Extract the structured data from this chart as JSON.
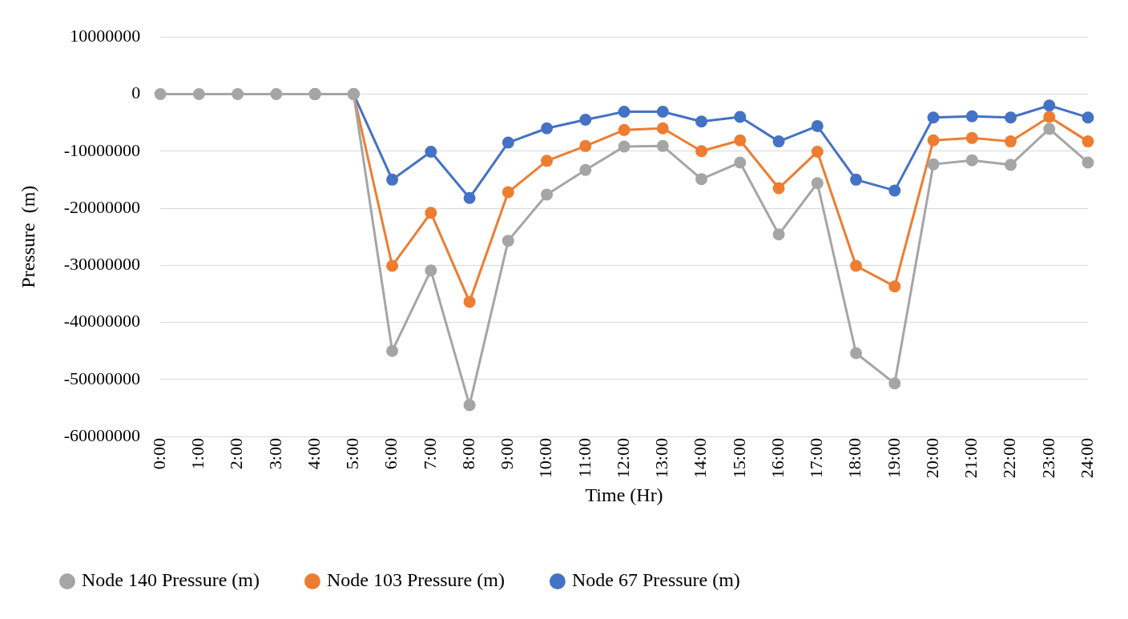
{
  "chart_data": {
    "type": "line",
    "xlabel": "Time (Hr)",
    "ylabel": "Pressure  (m)",
    "categories": [
      "0:00",
      "1:00",
      "2:00",
      "3:00",
      "4:00",
      "5:00",
      "6:00",
      "7:00",
      "8:00",
      "9:00",
      "10:00",
      "11:00",
      "12:00",
      "13:00",
      "14:00",
      "15:00",
      "16:00",
      "17:00",
      "18:00",
      "19:00",
      "20:00",
      "21:00",
      "22:00",
      "23:00",
      "24:00"
    ],
    "series": [
      {
        "name": "Node 67 Pressure (m)",
        "color": "#4472c4",
        "values": [
          null,
          null,
          null,
          null,
          0,
          0,
          -15000000,
          -10100000,
          -18200000,
          -8500000,
          -6000000,
          -4500000,
          -3100000,
          -3100000,
          -4800000,
          -4000000,
          -8300000,
          -5600000,
          -15000000,
          -16900000,
          -4100000,
          -3900000,
          -4100000,
          -2000000,
          -4100000
        ]
      },
      {
        "name": "Node 103 Pressure (m)",
        "color": "#ed7d31",
        "values": [
          null,
          null,
          null,
          null,
          0,
          0,
          -30100000,
          -20800000,
          -36400000,
          -17200000,
          -11700000,
          -9100000,
          -6300000,
          -6000000,
          -10000000,
          -8100000,
          -16500000,
          -10100000,
          -30100000,
          -33700000,
          -8100000,
          -7700000,
          -8300000,
          -4000000,
          -8300000
        ]
      },
      {
        "name": "Node 140 Pressure (m)",
        "color": "#a5a5a5",
        "values": [
          0,
          0,
          0,
          0,
          0,
          0,
          -45000000,
          -30900000,
          -54500000,
          -25700000,
          -17600000,
          -13300000,
          -9200000,
          -9100000,
          -14900000,
          -12000000,
          -24600000,
          -15600000,
          -45400000,
          -50700000,
          -12300000,
          -11600000,
          -12400000,
          -6100000,
          -12000000
        ]
      }
    ],
    "ylim": [
      -60000000,
      10000000
    ],
    "yticks": [
      -60000000,
      -50000000,
      -40000000,
      -30000000,
      -20000000,
      -10000000,
      0,
      10000000
    ],
    "grid": "y",
    "legend": "bottom",
    "marker": "circle",
    "line_style": "solid"
  }
}
